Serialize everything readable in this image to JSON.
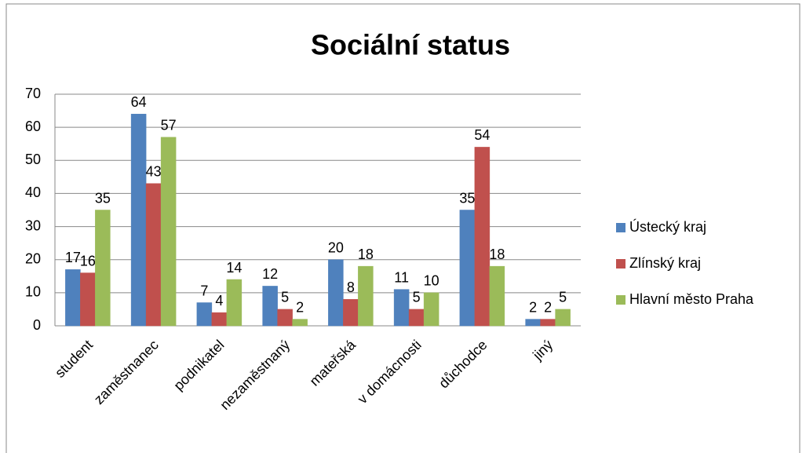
{
  "chart_data": {
    "type": "bar",
    "title": "Sociální status",
    "categories": [
      "student",
      "zaměstnanec",
      "podnikatel",
      "nezaměstnaný",
      "mateřská",
      "v domácnosti",
      "důchodce",
      "jiný"
    ],
    "series": [
      {
        "name": "Ústecký kraj",
        "color": "#4f81bd",
        "values": [
          17,
          64,
          7,
          12,
          20,
          11,
          35,
          2
        ]
      },
      {
        "name": "Zlínský kraj",
        "color": "#c0504d",
        "values": [
          16,
          43,
          4,
          5,
          8,
          5,
          54,
          2
        ]
      },
      {
        "name": "Hlavní město Praha",
        "color": "#9bbb59",
        "values": [
          35,
          57,
          14,
          2,
          18,
          10,
          18,
          5
        ]
      }
    ],
    "ylim": [
      0,
      70
    ],
    "yticks": [
      0,
      10,
      20,
      30,
      40,
      50,
      60,
      70
    ],
    "grid": true,
    "legend": "right"
  }
}
